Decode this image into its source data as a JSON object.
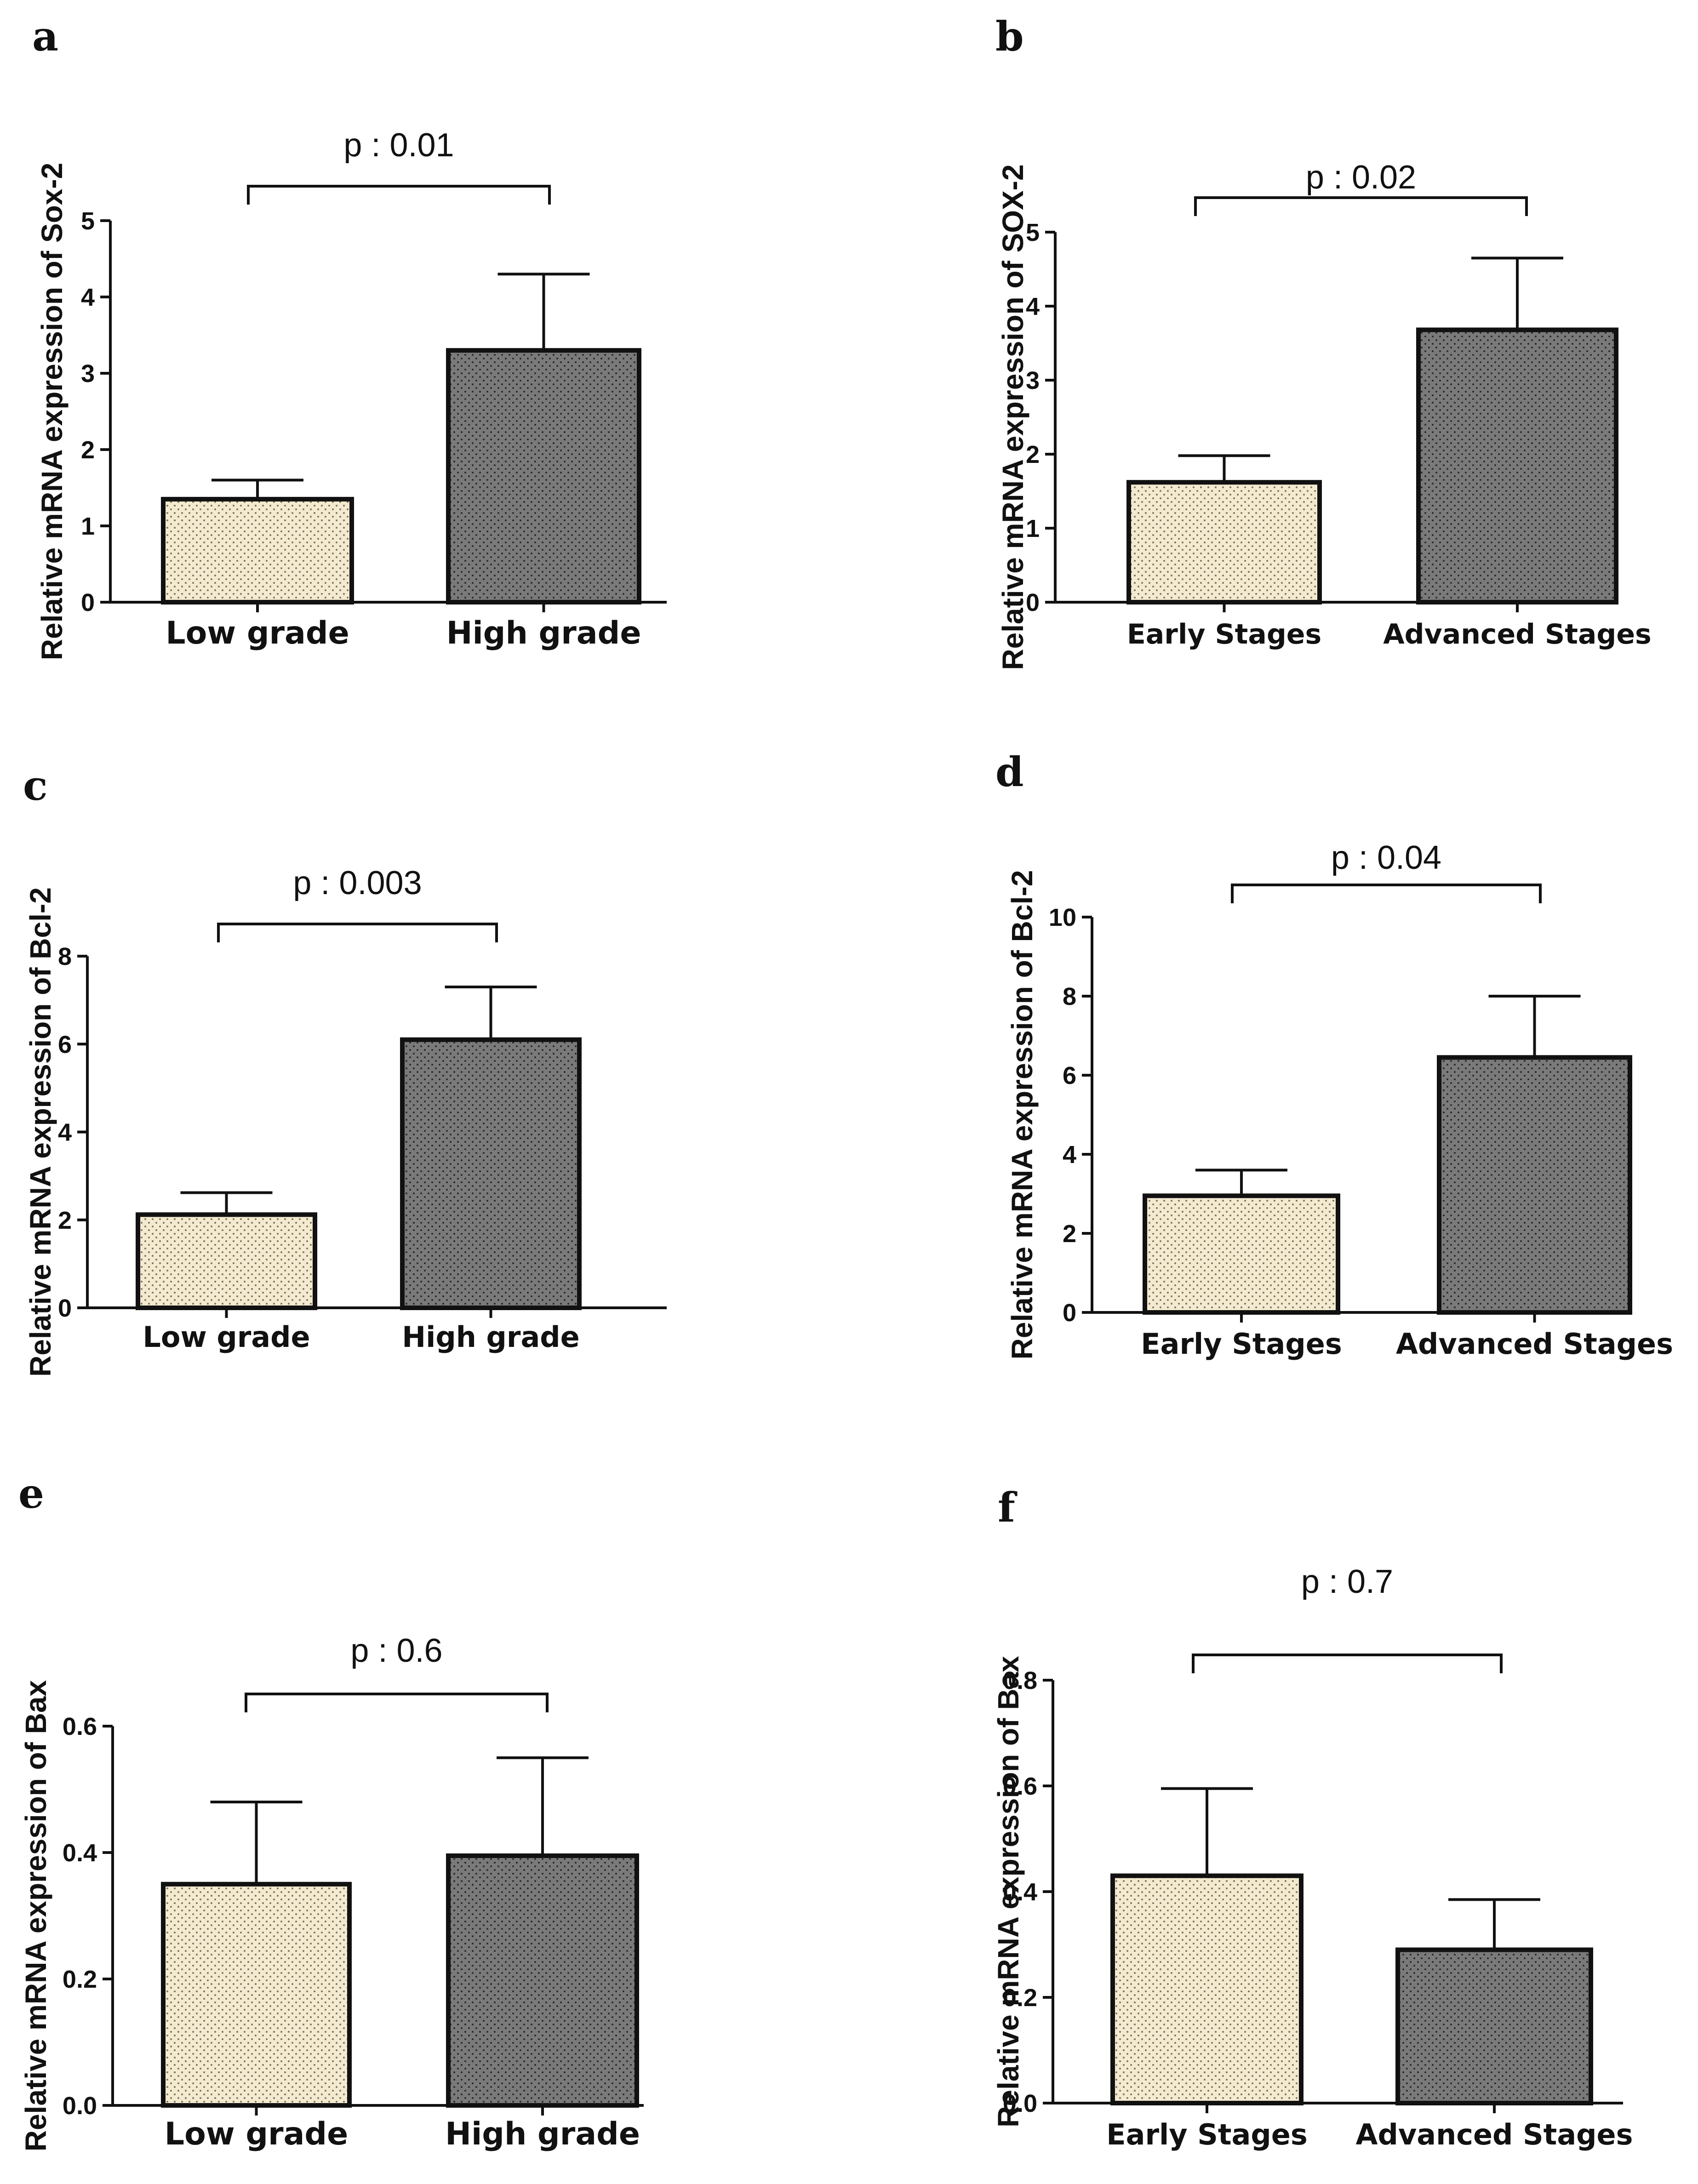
{
  "colors": {
    "low": "#f3ead0",
    "high": "#7a7a7a",
    "ink": "#111111"
  },
  "panels": [
    {
      "letter": "a",
      "ylabel": "Relative mRNA expression of Sox-2",
      "p_text": "p : 0.01",
      "ticks": [
        "0",
        "1",
        "2",
        "3",
        "4",
        "5"
      ]
    },
    {
      "letter": "b",
      "ylabel": "Relative mRNA expression of SOX-2",
      "p_text": "p : 0.02",
      "ticks": [
        "0",
        "1",
        "2",
        "3",
        "4",
        "5"
      ]
    },
    {
      "letter": "c",
      "ylabel": "Relative mRNA expression of Bcl-2",
      "p_text": "p : 0.003",
      "ticks": [
        "0",
        "2",
        "4",
        "6",
        "8"
      ]
    },
    {
      "letter": "d",
      "ylabel": "Relative mRNA expression of Bcl-2",
      "p_text": "p : 0.04",
      "ticks": [
        "0",
        "2",
        "4",
        "6",
        "8",
        "10"
      ]
    },
    {
      "letter": "e",
      "ylabel": "Relative mRNA expression of Bax",
      "p_text": "p : 0.6",
      "ticks": [
        "0.0",
        "0.2",
        "0.4",
        "0.6"
      ]
    },
    {
      "letter": "f",
      "ylabel": "Relative mRNA expression of Bax",
      "p_text": "p : 0.7",
      "ticks": [
        "0.0",
        "0.2",
        "0.4",
        "0.6",
        "0.8"
      ]
    }
  ],
  "chart_data": [
    {
      "type": "bar",
      "categories": [
        "Low grade",
        "High grade"
      ],
      "values": [
        1.35,
        3.3
      ],
      "error": [
        0.25,
        1.0
      ],
      "ylabel": "Relative mRNA expression of Sox-2",
      "ylim": [
        0,
        5
      ],
      "annotation": "p : 0.01"
    },
    {
      "type": "bar",
      "categories": [
        "Early Stages",
        "Advanced Stages"
      ],
      "values": [
        1.62,
        3.68
      ],
      "error": [
        0.36,
        0.97
      ],
      "ylabel": "Relative mRNA expression of SOX-2",
      "ylim": [
        0,
        5
      ],
      "annotation": "p : 0.02"
    },
    {
      "type": "bar",
      "categories": [
        "Low grade",
        "High grade"
      ],
      "values": [
        2.12,
        6.1
      ],
      "error": [
        0.5,
        1.2
      ],
      "ylabel": "Relative mRNA expression of Bcl-2",
      "ylim": [
        0,
        8
      ],
      "annotation": "p : 0.003"
    },
    {
      "type": "bar",
      "categories": [
        "Early Stages",
        "Advanced Stages"
      ],
      "values": [
        2.95,
        6.45
      ],
      "error": [
        0.65,
        1.55
      ],
      "ylabel": "Relative mRNA expression of Bcl-2",
      "ylim": [
        0,
        10
      ],
      "annotation": "p : 0.04"
    },
    {
      "type": "bar",
      "categories": [
        "Low grade",
        "High grade"
      ],
      "values": [
        0.35,
        0.395
      ],
      "error": [
        0.13,
        0.155
      ],
      "ylabel": "Relative mRNA expression of Bax",
      "ylim": [
        0,
        0.6
      ],
      "annotation": "p : 0.6"
    },
    {
      "type": "bar",
      "categories": [
        "Early Stages",
        "Advanced Stages"
      ],
      "values": [
        0.43,
        0.29
      ],
      "error": [
        0.165,
        0.095
      ],
      "ylabel": "Relative mRNA expression of Bax",
      "ylim": [
        0,
        0.8
      ],
      "annotation": "p : 0.7"
    }
  ]
}
